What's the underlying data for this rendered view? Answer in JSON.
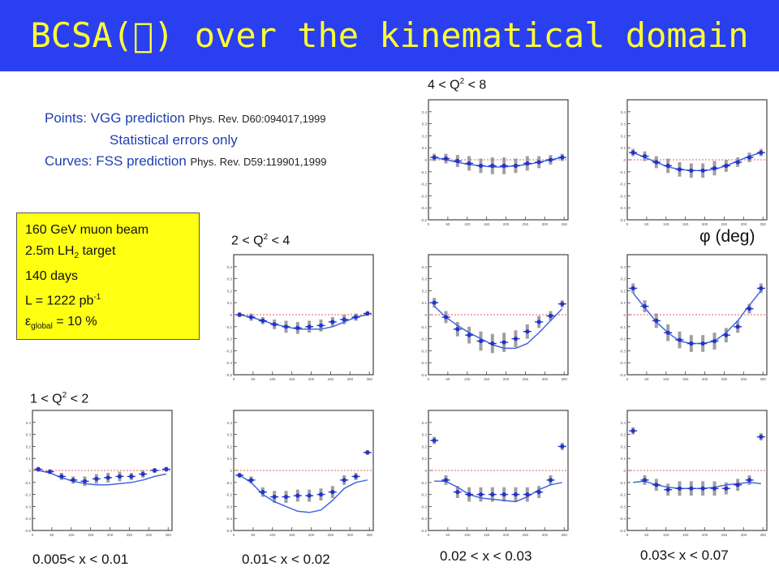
{
  "header": {
    "title_prefix": "BCSA(",
    "title_glyph": "⃞",
    "title_suffix": ") over the kinematical domain",
    "background": "#2a3ff0",
    "title_color": "#ffff33"
  },
  "notes": {
    "points_label": "Points:  VGG prediction ",
    "points_ref": "Phys. Rev. D60:094017,1999",
    "stat_errors": "Statistical errors only",
    "curves_label": "Curves:  FSS prediction ",
    "curves_ref": "Phys. Rev. D59:119901,1999"
  },
  "infobox": {
    "beam": "160 GeV muon beam",
    "target_prefix": "2.5m LH",
    "target_sub": "2",
    "target_suffix": " target",
    "days": "140 days",
    "lumi_prefix": "L = 1222 pb",
    "lumi_sup": "-1",
    "eff_prefix": "ε",
    "eff_sub": "global",
    "eff_suffix": " = 10 %",
    "background": "#ffff11"
  },
  "row_labels": {
    "high": {
      "pre": "4 < Q",
      "sup": "2",
      "post": " < 8"
    },
    "mid": {
      "pre": "2 < Q",
      "sup": "2",
      "post": " < 4"
    },
    "low": {
      "pre": "1 < Q",
      "sup": "2",
      "post": " < 2"
    }
  },
  "axis_label": "φ (deg)",
  "column_labels": [
    "0.005< x < 0.01",
    "0.01< x < 0.02",
    "0.02 < x < 0.03",
    "0.03< x < 0.07"
  ],
  "chart_data": {
    "type": "scatter",
    "x_unit": "deg",
    "xlim": [
      0,
      360
    ],
    "ylim": [
      -0.5,
      0.5
    ],
    "xticks": [
      "0",
      "50",
      "100",
      "150",
      "200",
      "250",
      "300",
      "350"
    ],
    "yticks": [
      "0.4",
      "0.3",
      "0.2",
      "0.1",
      "0",
      "-0.1",
      "-0.2",
      "-0.3",
      "-0.4",
      "-0.5"
    ],
    "x": [
      15,
      45,
      75,
      105,
      135,
      165,
      195,
      225,
      255,
      285,
      315,
      345
    ],
    "point_color": "#2233cc",
    "curve_color": "#4466dd",
    "error_bar_color": "#888888",
    "zero_line_color": "#e06060",
    "panels": [
      {
        "id": "x1-q1",
        "values": [
          0.01,
          -0.01,
          -0.05,
          -0.08,
          -0.09,
          -0.07,
          -0.06,
          -0.05,
          -0.05,
          -0.03,
          0.0,
          0.01
        ],
        "errors": [
          0.02,
          0.02,
          0.03,
          0.03,
          0.04,
          0.04,
          0.04,
          0.04,
          0.03,
          0.03,
          0.02,
          0.02
        ],
        "curve": [
          0.0,
          -0.02,
          -0.06,
          -0.09,
          -0.11,
          -0.12,
          -0.12,
          -0.11,
          -0.1,
          -0.08,
          -0.05,
          -0.03
        ]
      },
      {
        "id": "x2-q1",
        "values": [
          -0.04,
          -0.08,
          -0.18,
          -0.22,
          -0.22,
          -0.21,
          -0.21,
          -0.2,
          -0.18,
          -0.08,
          -0.05,
          0.15
        ],
        "errors": [
          0.02,
          0.03,
          0.04,
          0.05,
          0.05,
          0.05,
          0.05,
          0.05,
          0.05,
          0.04,
          0.03,
          0.02
        ],
        "curve": [
          -0.04,
          -0.1,
          -0.2,
          -0.26,
          -0.3,
          -0.34,
          -0.35,
          -0.33,
          -0.25,
          -0.15,
          -0.1,
          -0.08
        ]
      },
      {
        "id": "x3-q1",
        "values": [
          0.25,
          -0.08,
          -0.18,
          -0.2,
          -0.2,
          -0.2,
          -0.2,
          -0.2,
          -0.2,
          -0.18,
          -0.08,
          0.2
        ],
        "errors": [
          0.03,
          0.04,
          0.05,
          0.06,
          0.06,
          0.06,
          0.06,
          0.06,
          0.06,
          0.05,
          0.04,
          0.03
        ],
        "curve": [
          -0.09,
          -0.09,
          -0.14,
          -0.2,
          -0.23,
          -0.24,
          -0.25,
          -0.26,
          -0.22,
          -0.16,
          -0.12,
          -0.1
        ]
      },
      {
        "id": "x4-q1",
        "values": [
          0.33,
          -0.08,
          -0.12,
          -0.16,
          -0.15,
          -0.15,
          -0.15,
          -0.15,
          -0.15,
          -0.12,
          -0.08,
          0.28
        ],
        "errors": [
          0.03,
          0.04,
          0.05,
          0.05,
          0.06,
          0.06,
          0.06,
          0.06,
          0.05,
          0.05,
          0.04,
          0.03
        ],
        "curve": [
          -0.1,
          -0.09,
          -0.12,
          -0.14,
          -0.15,
          -0.15,
          -0.15,
          -0.14,
          -0.12,
          -0.11,
          -0.1,
          -0.11
        ]
      },
      {
        "id": "x2-q2",
        "values": [
          0.0,
          -0.02,
          -0.05,
          -0.08,
          -0.1,
          -0.11,
          -0.1,
          -0.09,
          -0.06,
          -0.04,
          -0.02,
          0.01
        ],
        "errors": [
          0.02,
          0.03,
          0.03,
          0.04,
          0.05,
          0.05,
          0.05,
          0.05,
          0.04,
          0.04,
          0.03,
          0.02
        ],
        "curve": [
          0.0,
          -0.02,
          -0.05,
          -0.08,
          -0.1,
          -0.12,
          -0.12,
          -0.12,
          -0.1,
          -0.06,
          -0.02,
          0.0
        ]
      },
      {
        "id": "x3-q2",
        "values": [
          0.1,
          -0.02,
          -0.12,
          -0.17,
          -0.22,
          -0.24,
          -0.23,
          -0.2,
          -0.14,
          -0.06,
          -0.01,
          0.09
        ],
        "errors": [
          0.04,
          0.05,
          0.06,
          0.07,
          0.08,
          0.08,
          0.08,
          0.07,
          0.06,
          0.05,
          0.04,
          0.03
        ],
        "curve": [
          0.07,
          -0.02,
          -0.09,
          -0.15,
          -0.2,
          -0.25,
          -0.28,
          -0.28,
          -0.24,
          -0.15,
          -0.05,
          0.05
        ]
      },
      {
        "id": "x4-q2",
        "values": [
          0.22,
          0.07,
          -0.05,
          -0.15,
          -0.21,
          -0.24,
          -0.24,
          -0.22,
          -0.17,
          -0.1,
          0.05,
          0.22
        ],
        "errors": [
          0.04,
          0.05,
          0.06,
          0.07,
          0.07,
          0.07,
          0.07,
          0.07,
          0.06,
          0.05,
          0.04,
          0.04
        ],
        "curve": [
          0.18,
          0.06,
          -0.06,
          -0.15,
          -0.22,
          -0.24,
          -0.24,
          -0.22,
          -0.15,
          -0.05,
          0.08,
          0.2
        ]
      },
      {
        "id": "x3-q3",
        "values": [
          0.02,
          0.01,
          -0.01,
          -0.03,
          -0.05,
          -0.05,
          -0.05,
          -0.05,
          -0.03,
          -0.02,
          0.0,
          0.02
        ],
        "errors": [
          0.03,
          0.04,
          0.05,
          0.06,
          0.06,
          0.07,
          0.07,
          0.06,
          0.06,
          0.05,
          0.04,
          0.03
        ],
        "curve": [
          0.02,
          0.0,
          -0.02,
          -0.04,
          -0.05,
          -0.06,
          -0.06,
          -0.05,
          -0.04,
          -0.02,
          0.0,
          0.02
        ]
      },
      {
        "id": "x4-q3",
        "values": [
          0.06,
          0.03,
          -0.02,
          -0.05,
          -0.08,
          -0.09,
          -0.09,
          -0.07,
          -0.05,
          -0.02,
          0.02,
          0.06
        ],
        "errors": [
          0.03,
          0.04,
          0.05,
          0.06,
          0.06,
          0.06,
          0.06,
          0.06,
          0.05,
          0.04,
          0.04,
          0.03
        ],
        "curve": [
          0.06,
          0.02,
          -0.02,
          -0.06,
          -0.08,
          -0.09,
          -0.09,
          -0.08,
          -0.05,
          -0.01,
          0.03,
          0.06
        ]
      }
    ]
  }
}
